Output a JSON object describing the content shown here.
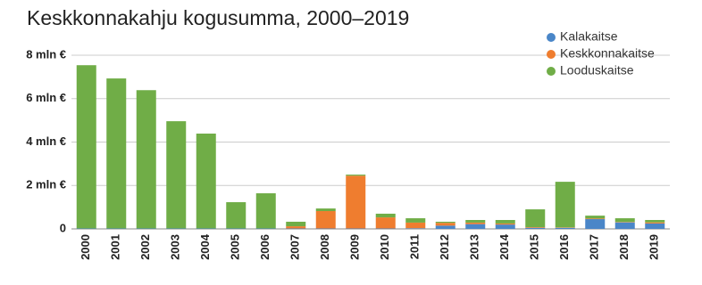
{
  "chart_data": {
    "type": "stacked-bar",
    "title": "Keskkonnakahju kogusumma, 2000–2019",
    "categories": [
      "2000",
      "2001",
      "2002",
      "2003",
      "2004",
      "2005",
      "2006",
      "2007",
      "2008",
      "2009",
      "2010",
      "2011",
      "2012",
      "2013",
      "2014",
      "2015",
      "2016",
      "2017",
      "2018",
      "2019"
    ],
    "series": [
      {
        "name": "Kalakaitse",
        "color": "#4a86c8",
        "values": [
          0.02,
          0.02,
          0.02,
          0.02,
          0.02,
          0.02,
          0.02,
          0.02,
          0.02,
          0.02,
          0.02,
          0.03,
          0.15,
          0.22,
          0.2,
          0.05,
          0.05,
          0.45,
          0.3,
          0.25
        ]
      },
      {
        "name": "Keskkonnakaitse",
        "color": "#ef7d2f",
        "values": [
          0,
          0,
          0,
          0,
          0,
          0,
          0,
          0.1,
          0.8,
          2.43,
          0.51,
          0.26,
          0.13,
          0.07,
          0.05,
          0.03,
          0.02,
          0.03,
          0.02,
          0.05
        ]
      },
      {
        "name": "Looduskaitse",
        "color": "#70ad47",
        "values": [
          7.52,
          6.91,
          6.37,
          4.94,
          4.37,
          1.21,
          1.62,
          0.21,
          0.12,
          0.05,
          0.17,
          0.2,
          0.05,
          0.12,
          0.16,
          0.82,
          2.1,
          0.13,
          0.17,
          0.11
        ]
      }
    ],
    "ylim": [
      0,
      8
    ],
    "yticks": [
      0,
      {
        "value": 2,
        "label": "2 mln €"
      },
      {
        "value": 4,
        "label": "4 mln €"
      },
      {
        "value": 6,
        "label": "6 mln €"
      },
      {
        "value": 8,
        "label": "8 mln €"
      }
    ],
    "grid": true,
    "legend": "top-right"
  }
}
